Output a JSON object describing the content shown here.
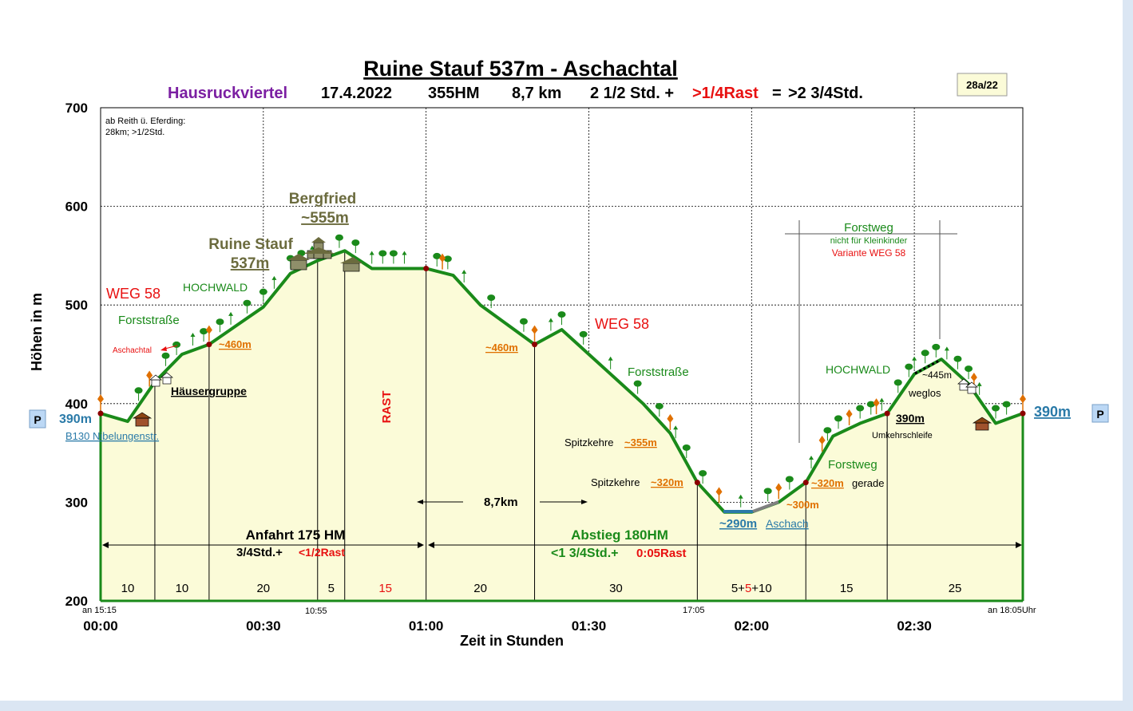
{
  "header": {
    "title": "Ruine Stauf 537m - Aschachtal",
    "region": "Hausruckviertel",
    "date": "17.4.2022",
    "hm": "355HM",
    "distance": "8,7 km",
    "duration": "2 1/2 Std. +",
    "rest": ">1/4Rast",
    "equals": "=",
    "total": ">2 3/4Std.",
    "code": "28a/22"
  },
  "colors": {
    "profile_line": "#1a8a1a",
    "fill": "#fbfbd8",
    "region": "#7b1fa2",
    "red": "#e81010",
    "orange": "#e07000",
    "olive": "#6b6b3e",
    "blue": "#2a7aa8"
  },
  "chart_data": {
    "type": "area",
    "title": "Ruine Stauf 537m - Aschachtal",
    "xlabel": "Zeit in Stunden",
    "ylabel": "Höhen in m",
    "ylim": [
      200,
      700
    ],
    "xlim": [
      "00:00",
      "02:50"
    ],
    "grid": true,
    "yticks": [
      "200",
      "300",
      "400",
      "500",
      "600",
      "700"
    ],
    "xticks": [
      {
        "t": 0,
        "label": "00:00"
      },
      {
        "t": 30,
        "label": "00:30"
      },
      {
        "t": 60,
        "label": "01:00"
      },
      {
        "t": 90,
        "label": "01:30"
      },
      {
        "t": 120,
        "label": "02:00"
      },
      {
        "t": 150,
        "label": "02:30"
      }
    ],
    "profile": {
      "minutes": [
        0,
        5,
        10,
        15,
        20,
        25,
        30,
        35,
        40,
        45,
        50,
        55,
        60,
        65,
        70,
        75,
        80,
        85,
        90,
        95,
        100,
        105,
        110,
        115,
        120,
        125,
        130,
        135,
        140,
        145,
        150,
        155,
        160,
        165,
        170
      ],
      "elevation_m": [
        390,
        382,
        422,
        450,
        460,
        479,
        498,
        532,
        545,
        555,
        537,
        537,
        537,
        530,
        500,
        480,
        460,
        475,
        450,
        425,
        400,
        370,
        320,
        290,
        290,
        300,
        320,
        367,
        380,
        390,
        430,
        445,
        420,
        380,
        390
      ]
    },
    "segments": [
      {
        "from": 0,
        "to": 10,
        "label": "10"
      },
      {
        "from": 10,
        "to": 20,
        "label": "10"
      },
      {
        "from": 20,
        "to": 40,
        "label": "20"
      },
      {
        "from": 40,
        "to": 45,
        "label": "5"
      },
      {
        "from": 45,
        "to": 60,
        "label": "15"
      },
      {
        "from": 60,
        "to": 80,
        "label": "20"
      },
      {
        "from": 80,
        "to": 110,
        "label": "30"
      },
      {
        "from": 110,
        "to": 130,
        "label": "5+5+10"
      },
      {
        "from": 130,
        "to": 145,
        "label": "15"
      },
      {
        "from": 145,
        "to": 170,
        "label": "25"
      }
    ],
    "annotations": {
      "start_time": "an 15:15",
      "mid_time": "10:55",
      "time_1705": "17:05",
      "end_time": "an 18:05Uhr",
      "note1": "ab Reith ü. Eferding:",
      "note2": "28km; >1/2Std.",
      "bergfried1": "Bergfried",
      "bergfried2": "~555m",
      "ruine1": "Ruine Stauf",
      "ruine2": "537m",
      "weg58_left": "WEG 58",
      "hochwald_left": "HOCHWALD",
      "forststrasse_left": "Forststraße",
      "aschachtal": "Aschachtal",
      "m460_left": "~460m",
      "haeusergruppe": "Häusergruppe",
      "start_390": "390m",
      "b130": "B130   Nibelungenstr.",
      "rast": "RAST",
      "weg58_mid": "WEG 58",
      "m460_mid": "~460m",
      "forststrasse_mid": "Forststraße",
      "spitzkehre1": "Spitzkehre",
      "m355": "~355m",
      "spitzkehre2": "Spitzkehre",
      "m320_left": "~320m",
      "distance_mid": "8,7km",
      "m290": "~290m",
      "aschach": "Aschach",
      "m300": "~300m",
      "m320_right": "~320m",
      "gerade": "gerade",
      "forstweg_small": "Forstweg",
      "hochwald_right": "HOCHWALD",
      "m445": "~445m",
      "weglos": "weglos",
      "m390_right": "390m",
      "umkehrschleife": "Umkehrschleife",
      "end_390": "390m",
      "forstweg_box": "Forstweg",
      "kleinkinder": "nicht für Kleinkinder",
      "variante": "Variante  WEG 58",
      "anfahrt1": "Anfahrt 175 HM",
      "anfahrt2": "3/4Std.+",
      "anfahrt_rest": "<1/2Rast",
      "abstieg1": "Abstieg 180HM",
      "abstieg2": "<1  3/4Std.+",
      "abstieg_rest": "0:05Rast",
      "parking": "P"
    }
  }
}
